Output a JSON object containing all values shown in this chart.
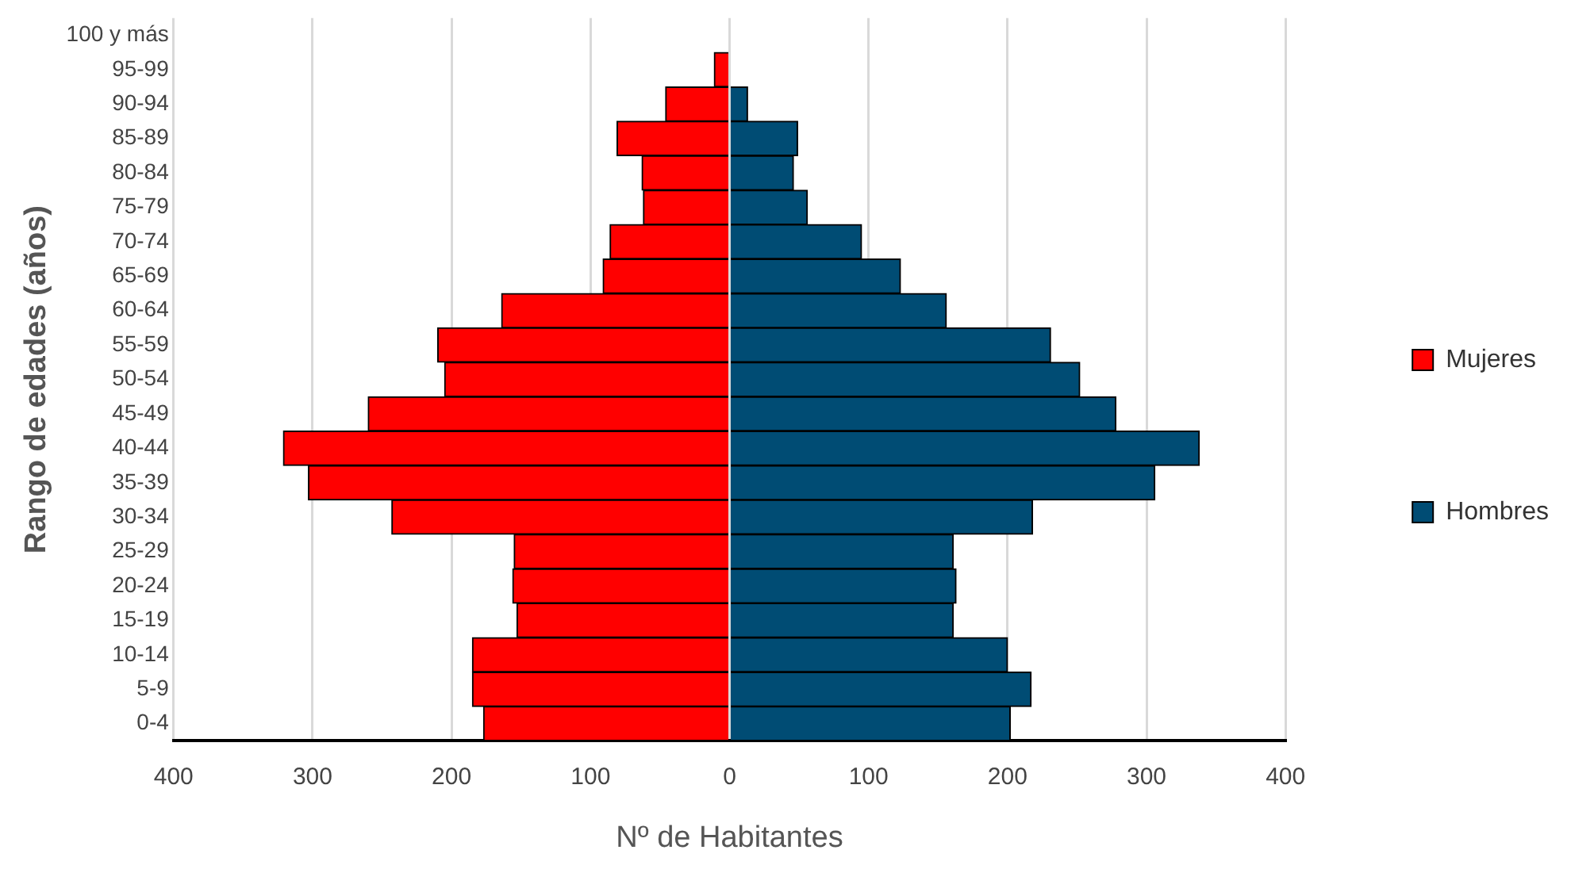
{
  "chart_data": {
    "type": "bar",
    "orientation": "horizontal",
    "stacked": true,
    "xlabel": "Nº de Habitantes",
    "ylabel": "Rango de edades (años)",
    "categories": [
      "100 y más",
      "95-99",
      "90-94",
      "85-89",
      "80-84",
      "75-79",
      "70-74",
      "65-69",
      "60-64",
      "55-59",
      "50-54",
      "45-49",
      "40-44",
      "35-39",
      "30-34",
      "25-29",
      "20-24",
      "15-19",
      "10-14",
      "5-9",
      "0-4"
    ],
    "series": [
      {
        "name": "Mujeres",
        "color": "#ff0000",
        "values": [
          0,
          -11,
          -46,
          -81,
          -63,
          -62,
          -86,
          -91,
          -164,
          -210,
          -205,
          -260,
          -321,
          -303,
          -243,
          -155,
          -156,
          -153,
          -185,
          -185,
          -177
        ]
      },
      {
        "name": "Hombres",
        "color": "#004c74",
        "values": [
          0,
          0,
          13,
          49,
          46,
          56,
          95,
          123,
          156,
          231,
          252,
          278,
          338,
          306,
          218,
          161,
          163,
          161,
          200,
          217,
          202
        ]
      }
    ],
    "xlim": [
      -400,
      400
    ],
    "xticks": [
      {
        "value": -400,
        "label": "400"
      },
      {
        "value": -300,
        "label": "300"
      },
      {
        "value": -200,
        "label": "200"
      },
      {
        "value": -100,
        "label": "100"
      },
      0,
      100,
      200,
      300,
      400
    ],
    "grid": "x",
    "legend": "right"
  }
}
